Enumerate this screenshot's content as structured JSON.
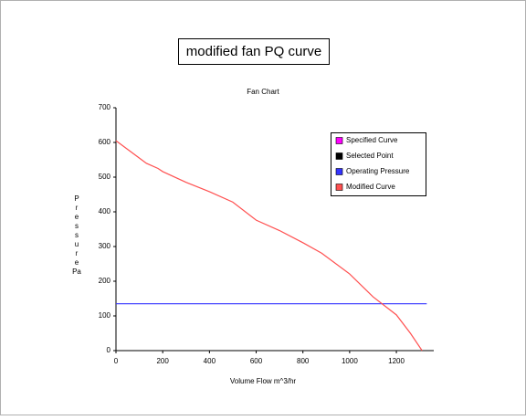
{
  "chart_data": {
    "type": "line",
    "header": "modified fan PQ curve",
    "title": "Fan Chart",
    "x_label": "Volume Flow m^3/hr",
    "y_label": "Pressure",
    "y_unit": "Pa",
    "xlim": [
      0,
      1360
    ],
    "xticks": [
      0,
      200,
      400,
      600,
      800,
      1000,
      1200
    ],
    "ylim": [
      0,
      700
    ],
    "yticks": [
      0,
      100,
      200,
      300,
      400,
      500,
      600,
      700
    ],
    "grid": false,
    "legend": "upper right",
    "series": [
      {
        "name": "Specified Curve",
        "color": "#ff00ff"
      },
      {
        "name": "Selected Point",
        "color": "#000000"
      },
      {
        "name": "Operating Pressure",
        "color": "#3333ff",
        "x": [
          0,
          1330
        ],
        "values": [
          135,
          135
        ]
      },
      {
        "name": "Modified Curve",
        "color": "#ff5050",
        "x": [
          0,
          50,
          100,
          130,
          180,
          200,
          300,
          400,
          500,
          600,
          700,
          800,
          880,
          1000,
          1100,
          1200,
          1260,
          1310
        ],
        "values": [
          605,
          580,
          555,
          540,
          525,
          516,
          485,
          458,
          428,
          376,
          346,
          311,
          281,
          221,
          155,
          103,
          50,
          0
        ]
      }
    ]
  }
}
